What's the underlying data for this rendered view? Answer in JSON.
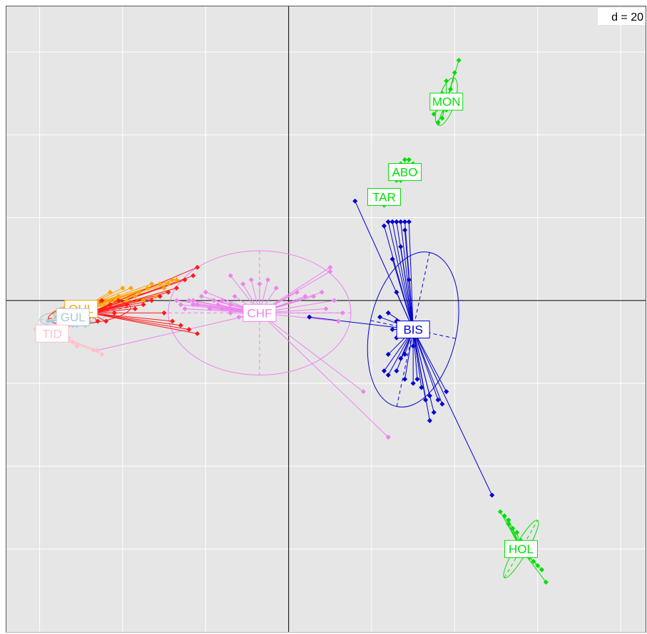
{
  "chart_data": {
    "type": "scatter",
    "title": "",
    "xlabel": "",
    "ylabel": "",
    "scale_label": "d = 20",
    "grid_step": 20,
    "xlim": [
      -68,
      86
    ],
    "ylim": [
      -80,
      71
    ],
    "grid": true,
    "colors": {
      "panel": "#e6e6e6",
      "grid": "#ffffff",
      "axis": "#000000"
    },
    "groups": [
      {
        "name": "MON",
        "color": "#00e000",
        "centroid": [
          38,
          48
        ],
        "ellipse": {
          "rx": 6,
          "ry": 2,
          "angle": 72
        },
        "points": [
          [
            41,
            58
          ],
          [
            40,
            55
          ],
          [
            38,
            53
          ],
          [
            39,
            51
          ],
          [
            37,
            50
          ],
          [
            40,
            49
          ],
          [
            36,
            47
          ],
          [
            38,
            46
          ],
          [
            35,
            45
          ],
          [
            37,
            44
          ],
          [
            36,
            43
          ],
          [
            39,
            47
          ],
          [
            36,
            48
          ]
        ]
      },
      {
        "name": "ABO",
        "color": "#00e000",
        "centroid": [
          28,
          31
        ],
        "ellipse": {
          "rx": 1.5,
          "ry": 1,
          "angle": 0
        },
        "points": [
          [
            28,
            34
          ],
          [
            29,
            34
          ],
          [
            30,
            33
          ],
          [
            27,
            33
          ],
          [
            28,
            32
          ],
          [
            27,
            29
          ],
          [
            26,
            29
          ]
        ]
      },
      {
        "name": "TAR",
        "color": "#00e000",
        "centroid": [
          23,
          25
        ],
        "ellipse": {
          "rx": 0.6,
          "ry": 0.6,
          "angle": 0
        },
        "points": [
          [
            23,
            23
          ],
          [
            24,
            24
          ],
          [
            23,
            24
          ]
        ]
      },
      {
        "name": "HOL",
        "color": "#00e000",
        "centroid": [
          56,
          -60
        ],
        "ellipse": {
          "rx": 8,
          "ry": 1.5,
          "angle": 60
        },
        "points": [
          [
            51,
            -51
          ],
          [
            52,
            -52
          ],
          [
            53,
            -53
          ],
          [
            54,
            -55
          ],
          [
            55,
            -56
          ],
          [
            56,
            -58
          ],
          [
            57,
            -60
          ],
          [
            58,
            -62
          ],
          [
            59,
            -63
          ],
          [
            60,
            -64
          ],
          [
            61,
            -65
          ],
          [
            62,
            -68
          ],
          [
            53,
            -54
          ],
          [
            58,
            -61
          ]
        ]
      },
      {
        "name": "BIS",
        "color": "#0000d0",
        "centroid": [
          30,
          -7
        ],
        "ellipse": {
          "rx": 19,
          "ry": 10.5,
          "angle": 78
        },
        "points": [
          [
            16,
            24
          ],
          [
            24,
            19
          ],
          [
            25,
            19
          ],
          [
            26,
            19
          ],
          [
            27,
            19
          ],
          [
            28,
            19
          ],
          [
            29,
            19
          ],
          [
            23,
            18
          ],
          [
            28,
            17
          ],
          [
            27,
            13
          ],
          [
            25,
            10
          ],
          [
            29,
            5
          ],
          [
            26,
            2
          ],
          [
            24,
            -3
          ],
          [
            22,
            -4
          ],
          [
            26,
            -5
          ],
          [
            27,
            -6
          ],
          [
            25,
            -7
          ],
          [
            29,
            -8
          ],
          [
            26,
            -9
          ],
          [
            30,
            -11
          ],
          [
            28,
            -13
          ],
          [
            27,
            -14
          ],
          [
            23,
            -17
          ],
          [
            24,
            -18
          ],
          [
            26,
            -17
          ],
          [
            28,
            -19
          ],
          [
            30,
            -20
          ],
          [
            31,
            -19
          ],
          [
            32,
            -21
          ],
          [
            34,
            -23
          ],
          [
            33,
            -24
          ],
          [
            36,
            -24
          ],
          [
            37,
            -25
          ],
          [
            35,
            -27
          ],
          [
            34,
            -29
          ],
          [
            38,
            -22
          ],
          [
            24,
            -13
          ],
          [
            5,
            -4
          ],
          [
            49,
            -47
          ]
        ]
      },
      {
        "name": "CHF",
        "color": "#ee82ee",
        "centroid": [
          -7,
          -3
        ],
        "ellipse": {
          "rx": 22,
          "ry": 15,
          "angle": 0
        },
        "points": [
          [
            -11,
            4
          ],
          [
            -14,
            6
          ],
          [
            -9,
            5
          ],
          [
            -7,
            4
          ],
          [
            -5,
            5
          ],
          [
            -3,
            3
          ],
          [
            2,
            2
          ],
          [
            4,
            1
          ],
          [
            6,
            1
          ],
          [
            8,
            2
          ],
          [
            10,
            7
          ],
          [
            10,
            8
          ],
          [
            9,
            -2
          ],
          [
            11,
            0
          ],
          [
            12,
            -5
          ],
          [
            13,
            -3
          ],
          [
            -18,
            0
          ],
          [
            -16,
            0
          ],
          [
            -14,
            -1
          ],
          [
            -13,
            1
          ],
          [
            -20,
            2
          ],
          [
            -21,
            1
          ],
          [
            -23,
            0
          ],
          [
            -23,
            -1
          ],
          [
            -24,
            0
          ],
          [
            -19,
            -2
          ],
          [
            -17,
            -1
          ],
          [
            -16,
            -2
          ],
          [
            -14,
            -3
          ],
          [
            -27,
            0
          ],
          [
            -26,
            -1
          ],
          [
            -22,
            -1
          ],
          [
            -25,
            -2
          ],
          [
            -12,
            -4
          ],
          [
            -10,
            -3
          ],
          [
            -8,
            -2
          ],
          [
            18,
            -22
          ],
          [
            24,
            -33
          ],
          [
            -46,
            -12
          ]
        ]
      },
      {
        "name": "OUL",
        "color": "#ffa500",
        "centroid": [
          -50,
          -2
        ],
        "ellipse": {
          "rx": 7,
          "ry": 1.5,
          "angle": 10
        },
        "points": [
          [
            -43,
            2
          ],
          [
            -40,
            3
          ],
          [
            -38,
            3
          ],
          [
            -36,
            2
          ],
          [
            -34,
            3
          ],
          [
            -33,
            4
          ],
          [
            -31,
            4
          ],
          [
            -30,
            3
          ],
          [
            -29,
            4
          ],
          [
            -28,
            5
          ],
          [
            -27,
            5
          ],
          [
            -32,
            1
          ],
          [
            -35,
            0
          ],
          [
            -37,
            1
          ],
          [
            -39,
            0
          ],
          [
            -41,
            1
          ],
          [
            -44,
            0
          ],
          [
            -46,
            -1
          ],
          [
            -48,
            -2
          ],
          [
            -50,
            -3
          ],
          [
            -52,
            -3
          ],
          [
            -54,
            -4
          ],
          [
            -55,
            -5
          ],
          [
            -53,
            -6
          ]
        ]
      },
      {
        "name": "GUL",
        "color": "#a8c8d8",
        "centroid": [
          -52,
          -4
        ],
        "ellipse": {
          "rx": 8,
          "ry": 2,
          "angle": 5
        },
        "points": [
          [
            -56,
            -4
          ],
          [
            -55,
            -4
          ],
          [
            -54,
            -5
          ],
          [
            -53,
            -5
          ],
          [
            -52,
            -6
          ],
          [
            -51,
            -6
          ],
          [
            -50,
            -5
          ],
          [
            -49,
            -6
          ],
          [
            -48,
            -5
          ],
          [
            -57,
            -5
          ],
          [
            -58,
            -5
          ],
          [
            -47,
            -4
          ]
        ]
      },
      {
        "name": "TID",
        "color": "#ffc0cb",
        "centroid": [
          -57,
          -8
        ],
        "ellipse": {
          "rx": 4,
          "ry": 1,
          "angle": 0
        },
        "points": [
          [
            -60,
            -7
          ],
          [
            -58,
            -7
          ],
          [
            -56,
            -8
          ],
          [
            -55,
            -8
          ],
          [
            -54,
            -9
          ],
          [
            -59,
            -8
          ],
          [
            -61,
            -7
          ],
          [
            -53,
            -9
          ],
          [
            -52,
            -10
          ],
          [
            -51,
            -11
          ],
          [
            -47,
            -12
          ],
          [
            -45,
            -13
          ],
          [
            -46,
            -12
          ],
          [
            -54,
            -7
          ],
          [
            -57,
            -7
          ]
        ]
      },
      {
        "name": "",
        "color": "#ff1a1a",
        "centroid": [
          -48,
          -3
        ],
        "ellipse": {
          "rx": 10,
          "ry": 2.5,
          "angle": 8
        },
        "points": [
          [
            -45,
            0
          ],
          [
            -43,
            -1
          ],
          [
            -41,
            0
          ],
          [
            -39,
            -1
          ],
          [
            -37,
            -2
          ],
          [
            -35,
            -1
          ],
          [
            -33,
            0
          ],
          [
            -31,
            1
          ],
          [
            -29,
            2
          ],
          [
            -27,
            3
          ],
          [
            -25,
            5
          ],
          [
            -23,
            6
          ],
          [
            -22,
            8
          ],
          [
            -30,
            -3
          ],
          [
            -28,
            -5
          ],
          [
            -26,
            -6
          ],
          [
            -24,
            -7
          ],
          [
            -22,
            -8
          ],
          [
            -50,
            -4
          ],
          [
            -52,
            -5
          ],
          [
            -54,
            -6
          ],
          [
            -56,
            -7
          ],
          [
            -58,
            -7
          ],
          [
            -55,
            -6
          ],
          [
            -53,
            -5
          ],
          [
            -49,
            -4
          ],
          [
            -47,
            -3
          ],
          [
            -46,
            -5
          ],
          [
            -44,
            -5
          ],
          [
            -42,
            -3
          ]
        ]
      }
    ]
  }
}
